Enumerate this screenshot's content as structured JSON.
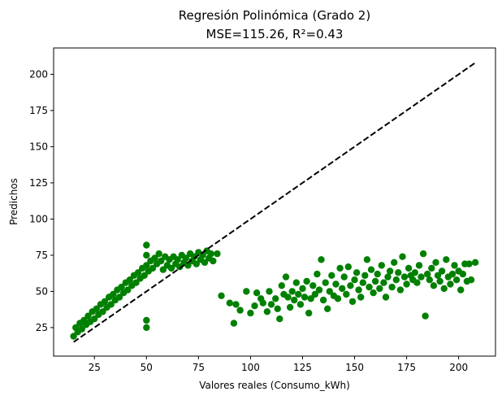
{
  "chart_data": {
    "type": "scatter",
    "title_line1": "Regresión Polinómica (Grado 2)",
    "title_line2": "MSE=115.26, R²=0.43",
    "xlabel": "Valores reales (Consumo_kWh)",
    "ylabel": "Predichos",
    "xlim": [
      5.4,
      217.7
    ],
    "ylim": [
      5.3,
      218.2
    ],
    "x_ticks": [
      25,
      50,
      75,
      100,
      125,
      150,
      175,
      200
    ],
    "y_ticks": [
      25,
      50,
      75,
      100,
      125,
      150,
      175,
      200
    ],
    "grid": false,
    "point_color": "#008000",
    "reference_line": {
      "style": "dashed",
      "color": "#000000",
      "x": [
        15,
        208
      ],
      "y": [
        15,
        208
      ]
    },
    "series": [
      {
        "points": [
          [
            15,
            19
          ],
          [
            16,
            25
          ],
          [
            17,
            22
          ],
          [
            18,
            28
          ],
          [
            19,
            24
          ],
          [
            20,
            30
          ],
          [
            21,
            27
          ],
          [
            22,
            33
          ],
          [
            23,
            29
          ],
          [
            24,
            36
          ],
          [
            25,
            31
          ],
          [
            26,
            38
          ],
          [
            27,
            34
          ],
          [
            28,
            41
          ],
          [
            29,
            36
          ],
          [
            30,
            43
          ],
          [
            31,
            39
          ],
          [
            32,
            46
          ],
          [
            33,
            41
          ],
          [
            34,
            48
          ],
          [
            35,
            44
          ],
          [
            36,
            51
          ],
          [
            37,
            46
          ],
          [
            38,
            53
          ],
          [
            39,
            49
          ],
          [
            40,
            56
          ],
          [
            41,
            51
          ],
          [
            42,
            58
          ],
          [
            43,
            54
          ],
          [
            44,
            61
          ],
          [
            45,
            56
          ],
          [
            46,
            63
          ],
          [
            47,
            59
          ],
          [
            48,
            66
          ],
          [
            49,
            61
          ],
          [
            50,
            68
          ],
          [
            50,
            82
          ],
          [
            50,
            25
          ],
          [
            50,
            30
          ],
          [
            50,
            75
          ],
          [
            51,
            64
          ],
          [
            52,
            71
          ],
          [
            53,
            66
          ],
          [
            54,
            73
          ],
          [
            55,
            69
          ],
          [
            56,
            76
          ],
          [
            57,
            71
          ],
          [
            58,
            65
          ],
          [
            59,
            74
          ],
          [
            60,
            68
          ],
          [
            61,
            72
          ],
          [
            62,
            66
          ],
          [
            63,
            74
          ],
          [
            64,
            69
          ],
          [
            65,
            72
          ],
          [
            66,
            67
          ],
          [
            67,
            75
          ],
          [
            68,
            70
          ],
          [
            69,
            73
          ],
          [
            70,
            68
          ],
          [
            71,
            76
          ],
          [
            72,
            71
          ],
          [
            73,
            74
          ],
          [
            74,
            69
          ],
          [
            75,
            77
          ],
          [
            76,
            72
          ],
          [
            77,
            75
          ],
          [
            78,
            70
          ],
          [
            79,
            78
          ],
          [
            80,
            73
          ],
          [
            81,
            76
          ],
          [
            82,
            71
          ],
          [
            84,
            76
          ],
          [
            86,
            47
          ],
          [
            90,
            42
          ],
          [
            92,
            28
          ],
          [
            93,
            41
          ],
          [
            95,
            37
          ],
          [
            98,
            50
          ],
          [
            100,
            35
          ],
          [
            102,
            40
          ],
          [
            103,
            49
          ],
          [
            105,
            45
          ],
          [
            106,
            42
          ],
          [
            108,
            36
          ],
          [
            109,
            50
          ],
          [
            110,
            41
          ],
          [
            112,
            45
          ],
          [
            113,
            38
          ],
          [
            114,
            31
          ],
          [
            115,
            54
          ],
          [
            116,
            48
          ],
          [
            117,
            60
          ],
          [
            118,
            46
          ],
          [
            119,
            39
          ],
          [
            120,
            50
          ],
          [
            121,
            44
          ],
          [
            122,
            56
          ],
          [
            123,
            48
          ],
          [
            124,
            41
          ],
          [
            125,
            52
          ],
          [
            126,
            46
          ],
          [
            127,
            57
          ],
          [
            128,
            35
          ],
          [
            129,
            45
          ],
          [
            130,
            54
          ],
          [
            131,
            48
          ],
          [
            132,
            62
          ],
          [
            133,
            51
          ],
          [
            134,
            72
          ],
          [
            135,
            44
          ],
          [
            136,
            56
          ],
          [
            137,
            38
          ],
          [
            138,
            50
          ],
          [
            139,
            61
          ],
          [
            140,
            47
          ],
          [
            141,
            55
          ],
          [
            142,
            45
          ],
          [
            143,
            66
          ],
          [
            144,
            52
          ],
          [
            145,
            60
          ],
          [
            146,
            48
          ],
          [
            147,
            67
          ],
          [
            148,
            54
          ],
          [
            149,
            43
          ],
          [
            150,
            58
          ],
          [
            151,
            63
          ],
          [
            152,
            51
          ],
          [
            153,
            46
          ],
          [
            154,
            56
          ],
          [
            155,
            61
          ],
          [
            156,
            72
          ],
          [
            157,
            53
          ],
          [
            158,
            65
          ],
          [
            159,
            49
          ],
          [
            160,
            57
          ],
          [
            161,
            62
          ],
          [
            162,
            52
          ],
          [
            163,
            68
          ],
          [
            164,
            56
          ],
          [
            165,
            46
          ],
          [
            166,
            60
          ],
          [
            167,
            64
          ],
          [
            168,
            53
          ],
          [
            169,
            70
          ],
          [
            170,
            58
          ],
          [
            171,
            63
          ],
          [
            172,
            51
          ],
          [
            173,
            74
          ],
          [
            174,
            60
          ],
          [
            175,
            55
          ],
          [
            176,
            66
          ],
          [
            177,
            61
          ],
          [
            178,
            58
          ],
          [
            179,
            63
          ],
          [
            180,
            56
          ],
          [
            181,
            68
          ],
          [
            182,
            60
          ],
          [
            183,
            76
          ],
          [
            184,
            33
          ],
          [
            185,
            62
          ],
          [
            186,
            58
          ],
          [
            187,
            66
          ],
          [
            188,
            54
          ],
          [
            189,
            70
          ],
          [
            190,
            61
          ],
          [
            191,
            57
          ],
          [
            192,
            64
          ],
          [
            193,
            52
          ],
          [
            194,
            72
          ],
          [
            195,
            60
          ],
          [
            196,
            55
          ],
          [
            197,
            62
          ],
          [
            198,
            68
          ],
          [
            199,
            58
          ],
          [
            200,
            64
          ],
          [
            201,
            51
          ],
          [
            202,
            62
          ],
          [
            203,
            69
          ],
          [
            204,
            57
          ],
          [
            205,
            69
          ],
          [
            206,
            58
          ],
          [
            208,
            70
          ]
        ]
      }
    ]
  }
}
